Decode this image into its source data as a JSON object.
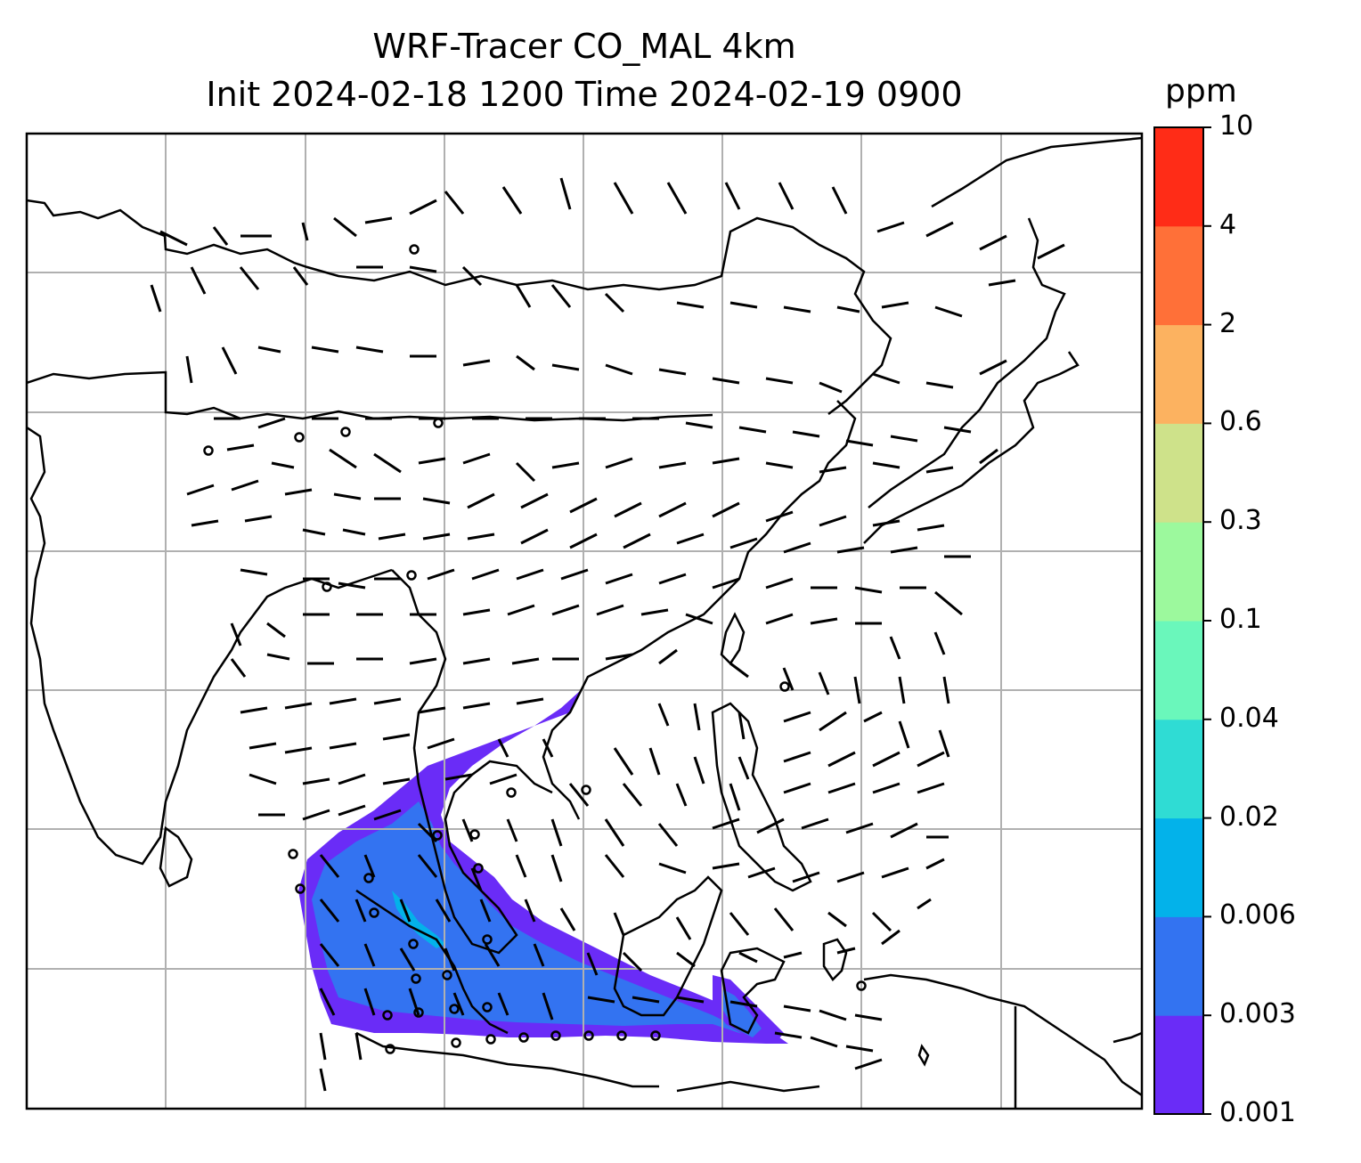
{
  "title_line1": "WRF-Tracer CO_MAL 4km",
  "title_line2": "Init 2024-02-18 1200 Time 2024-02-19 0900",
  "colorbar": {
    "unit": "ppm",
    "levels": [
      "0.001",
      "0.003",
      "0.006",
      "0.02",
      "0.04",
      "0.1",
      "0.3",
      "0.6",
      "2",
      "4",
      "10"
    ],
    "colors": [
      "#6a2cf7",
      "#3373f1",
      "#03b2ea",
      "#2fdcd4",
      "#6af7bb",
      "#9cf99d",
      "#cee28a",
      "#fcb260",
      "#ff7038",
      "#ff2c17"
    ]
  },
  "map_layers": {
    "gridlines": "on",
    "coastlines": "on",
    "wind_barbs": "on",
    "tracer_fill": "CO_MAL concentration over Malaysia / South China Sea"
  }
}
